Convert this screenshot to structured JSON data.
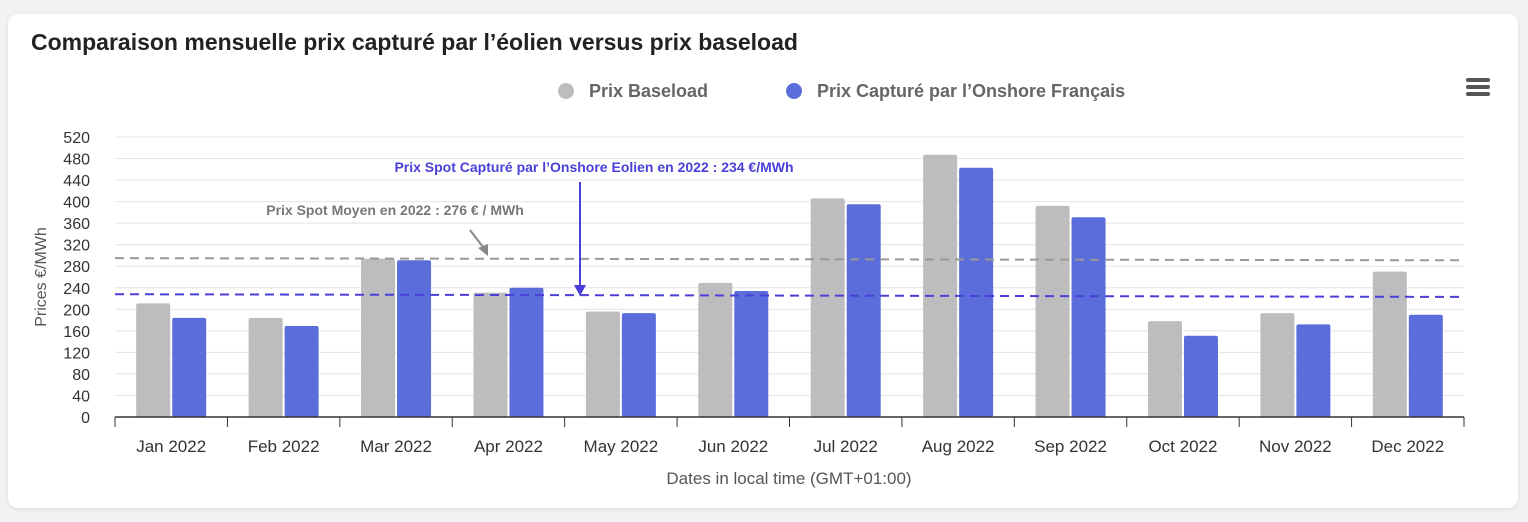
{
  "title": "Comparaison mensuelle prix capturé par l’éolien versus prix baseload",
  "menu": {
    "icon": "hamburger-menu-icon"
  },
  "colors": {
    "baseload": "#bdbdbf",
    "captured": "#5b6ddb",
    "baseline_line": "#999999",
    "captured_line": "#4b3fd9",
    "annotation_captured": "#4b3fd9",
    "annotation_baseload": "#777777"
  },
  "chart_data": {
    "type": "bar",
    "categories": [
      "Jan 2022",
      "Feb 2022",
      "Mar 2022",
      "Apr 2022",
      "May 2022",
      "Jun 2022",
      "Jul 2022",
      "Aug 2022",
      "Sep 2022",
      "Oct 2022",
      "Nov 2022",
      "Dec 2022"
    ],
    "series": [
      {
        "name": "Prix Baseload",
        "values": [
          211,
          184,
          294,
          231,
          196,
          249,
          406,
          487,
          392,
          178,
          193,
          270
        ]
      },
      {
        "name": "Prix Capturé par l’Onshore Français",
        "values": [
          184,
          169,
          291,
          240,
          193,
          234,
          395,
          463,
          371,
          151,
          172,
          190
        ]
      }
    ],
    "xlabel": "Dates in local time (GMT+01:00)",
    "ylabel": "Prices €/MWh",
    "ylim": [
      0,
      520
    ],
    "yticks": [
      0,
      40,
      80,
      120,
      160,
      200,
      240,
      280,
      320,
      360,
      400,
      440,
      480,
      520
    ],
    "grid": true,
    "legend": "top-center",
    "reference_lines": [
      {
        "series": "Prix Baseload",
        "start": 295,
        "end": 291
      },
      {
        "series": "Prix Capturé par l’Onshore Français",
        "start": 228,
        "end": 223
      }
    ],
    "annotations": [
      {
        "text": "Prix Spot Capturé par l’Onshore Eolien en 2022 : 234 €/MWh",
        "series": "Prix Capturé par l’Onshore Français"
      },
      {
        "text": "Prix Spot Moyen en 2022 : 276 € / MWh",
        "series": "Prix Baseload"
      }
    ]
  }
}
